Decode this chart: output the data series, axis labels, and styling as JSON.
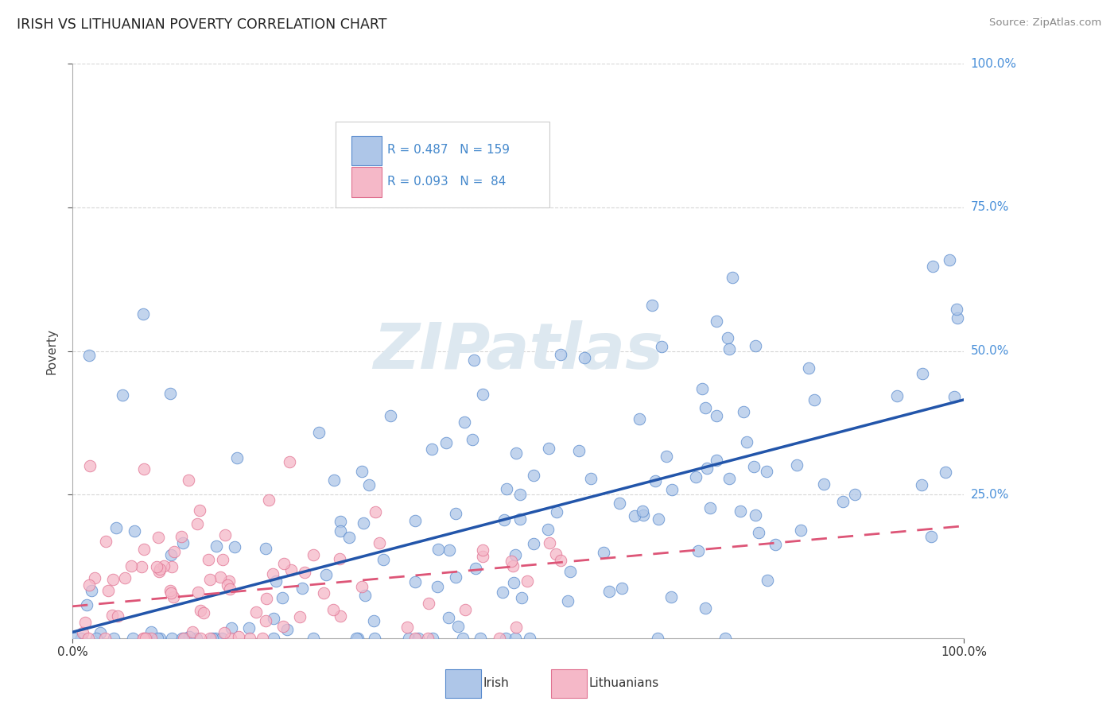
{
  "title": "IRISH VS LITHUANIAN POVERTY CORRELATION CHART",
  "source_text": "Source: ZipAtlas.com",
  "ylabel": "Poverty",
  "xlim": [
    0.0,
    1.0
  ],
  "ylim": [
    0.0,
    1.0
  ],
  "xtick_labels": [
    "0.0%",
    "100.0%"
  ],
  "ytick_labels": [
    "25.0%",
    "50.0%",
    "75.0%",
    "100.0%"
  ],
  "ytick_positions": [
    0.25,
    0.5,
    0.75,
    1.0
  ],
  "irish_R": 0.487,
  "irish_N": 159,
  "lith_R": 0.093,
  "lith_N": 84,
  "irish_color": "#aec6e8",
  "irish_edge_color": "#5588cc",
  "irish_line_color": "#2255aa",
  "lith_color": "#f5b8c8",
  "lith_edge_color": "#e07090",
  "lith_line_color": "#dd5577",
  "background_color": "#ffffff",
  "grid_color": "#cccccc",
  "title_color": "#222222",
  "source_color": "#888888",
  "ytick_color": "#4a90d9",
  "watermark_color": "#dde8f0",
  "legend_label_irish": "Irish",
  "legend_label_lith": "Lithuanians",
  "irish_line_start_y": 0.01,
  "irish_line_end_y": 0.415,
  "lith_line_start_y": 0.055,
  "lith_line_end_y": 0.195
}
